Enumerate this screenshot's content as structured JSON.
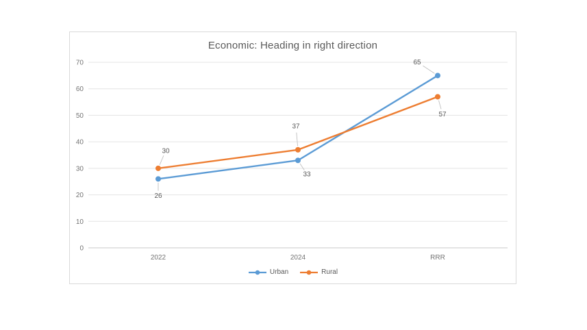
{
  "chart": {
    "border_color": "#d9d9d9",
    "grid_color": "#e3e3e3",
    "axis_line_color": "#c9c9c9",
    "leader_line_color": "#bfbfbf",
    "title_color": "#595959",
    "tick_color": "#737373"
  },
  "chart_data": {
    "type": "line",
    "title": "Economic: Heading in right direction",
    "categories": [
      "2022",
      "2024",
      "RRR"
    ],
    "series": [
      {
        "name": "Urban",
        "values": [
          26,
          33,
          65
        ],
        "color": "#5B9BD5",
        "label_offsets": [
          [
            0,
            24
          ],
          [
            13,
            20
          ],
          [
            -30,
            -20
          ]
        ]
      },
      {
        "name": "Rural",
        "values": [
          30,
          37,
          57
        ],
        "color": "#ED7D31",
        "label_offsets": [
          [
            11,
            -26
          ],
          [
            -3,
            -35
          ],
          [
            7,
            25
          ]
        ]
      }
    ],
    "xlabel": "",
    "ylabel": "",
    "ylim": [
      0,
      70
    ],
    "yticks": [
      0,
      10,
      20,
      30,
      40,
      50,
      60,
      70
    ],
    "grid": true,
    "markers": true,
    "data_labels": true,
    "legend_position": "bottom"
  }
}
